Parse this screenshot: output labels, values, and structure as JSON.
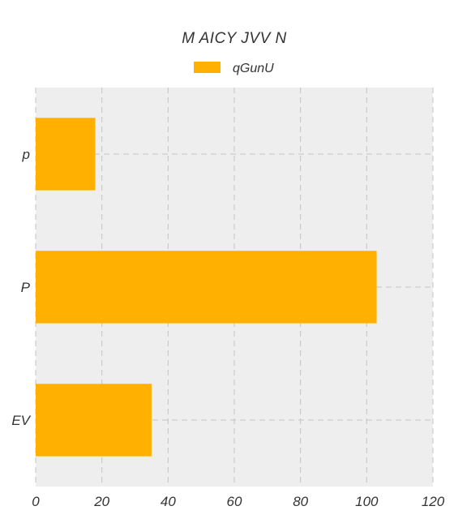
{
  "chart_data": {
    "type": "bar",
    "orientation": "horizontal",
    "title": "M  AICY JVV  N",
    "xlabel": "",
    "ylabel": "",
    "categories": [
      "p",
      "P",
      "EV"
    ],
    "series": [
      {
        "name": "qGunU",
        "values": [
          18,
          103,
          35
        ]
      }
    ],
    "xlim": [
      0,
      120
    ],
    "xticks": [
      0,
      20,
      40,
      60,
      80,
      100,
      120
    ],
    "grid": true,
    "legend": "top-center",
    "colors": {
      "bar": "#FFB000",
      "plot_background": "#EEEEEE",
      "grid": "#C4C4C4",
      "text": "#333333"
    }
  }
}
